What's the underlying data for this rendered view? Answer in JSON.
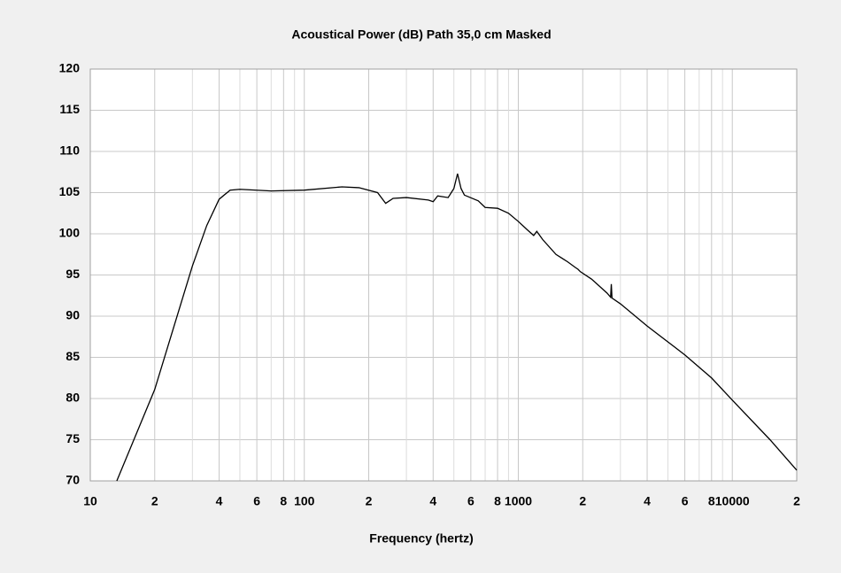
{
  "chart_data": {
    "type": "line",
    "title": "Acoustical Power (dB)   Path 35,0 cm   Masked",
    "x_label": "Frequency (hertz)",
    "log_x": true,
    "grid": true,
    "xlim": [
      10,
      20000
    ],
    "ylim": [
      70,
      120
    ],
    "xticks": [
      10,
      {
        "value": 20,
        "label": "2"
      },
      {
        "value": 40,
        "label": "4"
      },
      {
        "value": 60,
        "label": "6"
      },
      {
        "value": 80,
        "label": "8"
      },
      100,
      {
        "value": 200,
        "label": "2"
      },
      {
        "value": 400,
        "label": "4"
      },
      {
        "value": 600,
        "label": "6"
      },
      {
        "value": 800,
        "label": "8"
      },
      1000,
      {
        "value": 2000,
        "label": "2"
      },
      {
        "value": 4000,
        "label": "4"
      },
      {
        "value": 6000,
        "label": "6"
      },
      {
        "value": 8000,
        "label": "8"
      },
      10000,
      {
        "value": 20000,
        "label": "2"
      }
    ],
    "x_minor_ticks": [
      30,
      50,
      70,
      90,
      300,
      500,
      700,
      900,
      3000,
      5000,
      7000,
      9000
    ],
    "yticks": [
      70,
      75,
      80,
      85,
      90,
      95,
      100,
      105,
      110,
      115,
      120
    ],
    "x": [
      13.3,
      20,
      30,
      35,
      40,
      45,
      50,
      70,
      100,
      150,
      180,
      220,
      240,
      260,
      300,
      380,
      400,
      420,
      470,
      500,
      520,
      540,
      560,
      650,
      700,
      800,
      900,
      1000,
      1100,
      1180,
      1220,
      1300,
      1500,
      1700,
      1850,
      1900,
      1950,
      2200,
      2600,
      2700,
      2720,
      2740,
      3000,
      4000,
      6000,
      8000,
      10000,
      15000,
      20000
    ],
    "series": [
      {
        "name": "Acoustical Power",
        "color": "#000000",
        "values": [
          70,
          81.1,
          96.1,
          101,
          104.2,
          105.3,
          105.4,
          105.2,
          105.3,
          105.7,
          105.6,
          105,
          103.7,
          104.3,
          104.4,
          104.1,
          103.9,
          104.6,
          104.4,
          105.5,
          107.3,
          105.5,
          104.7,
          104,
          103.2,
          103.1,
          102.5,
          101.5,
          100.5,
          99.8,
          100.3,
          99.3,
          97.5,
          96.6,
          95.9,
          95.7,
          95.4,
          94.5,
          92.8,
          92.3,
          93.9,
          92.2,
          91.5,
          88.8,
          85.3,
          82.5,
          79.8,
          75,
          71.3
        ]
      }
    ]
  }
}
